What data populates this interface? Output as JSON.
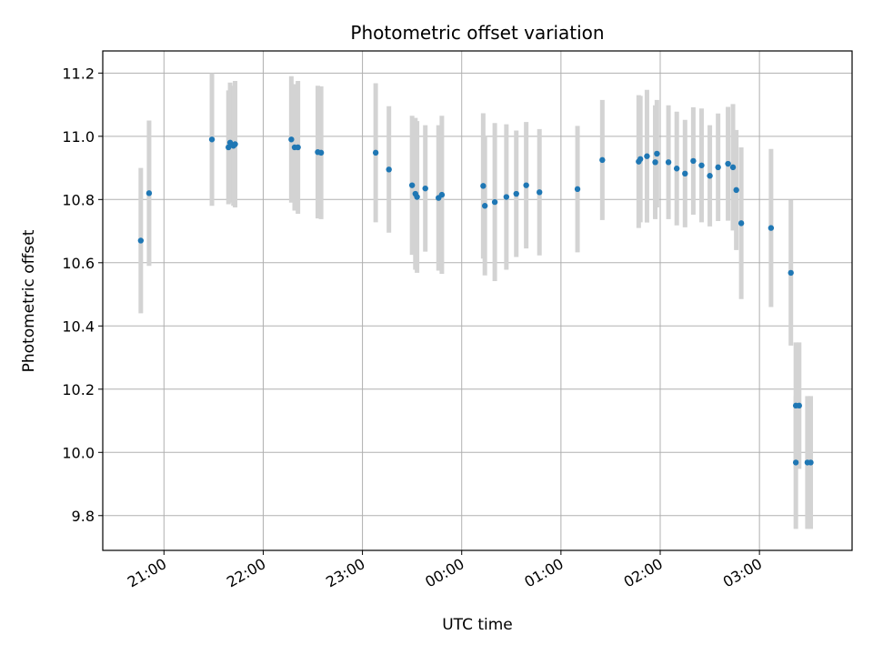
{
  "chart_data": {
    "type": "scatter",
    "title": "Photometric offset variation",
    "xlabel": "UTC time",
    "ylabel": "Photometric offset",
    "xlim": [
      "20:23",
      "03:56"
    ],
    "ylim": [
      9.69,
      11.27
    ],
    "x_ticks": [
      "21:00",
      "22:00",
      "23:00",
      "00:00",
      "01:00",
      "02:00",
      "03:00"
    ],
    "y_ticks": [
      "9.8",
      "10.0",
      "10.2",
      "10.4",
      "10.6",
      "10.8",
      "11.0",
      "11.2"
    ],
    "grid": true,
    "point_color": "#1f77b4",
    "errorbar_color": "#d3d3d3",
    "series": [
      {
        "x": [
          "20:46",
          "20:51",
          "21:29",
          "21:39",
          "21:40",
          "21:42",
          "21:43",
          "22:17",
          "22:19",
          "22:21",
          "22:33",
          "22:35",
          "23:08",
          "23:16",
          "23:30",
          "23:32",
          "23:33",
          "23:38",
          "23:46",
          "23:48",
          "00:13",
          "00:14",
          "00:20",
          "00:27",
          "00:33",
          "00:39",
          "00:47",
          "01:10",
          "01:25",
          "01:47",
          "01:48",
          "01:52",
          "01:57",
          "01:58",
          "02:05",
          "02:10",
          "02:15",
          "02:20",
          "02:25",
          "02:30",
          "02:35",
          "02:41",
          "02:44",
          "02:46",
          "02:49",
          "03:07",
          "03:19",
          "03:22",
          "03:22",
          "03:24",
          "03:29",
          "03:31"
        ],
        "y": [
          10.67,
          10.82,
          10.99,
          10.965,
          10.98,
          10.97,
          10.975,
          10.99,
          10.965,
          10.965,
          10.95,
          10.948,
          10.948,
          10.895,
          10.845,
          10.818,
          10.808,
          10.835,
          10.805,
          10.815,
          10.843,
          10.78,
          10.792,
          10.808,
          10.818,
          10.845,
          10.823,
          10.833,
          10.925,
          10.92,
          10.928,
          10.937,
          10.918,
          10.945,
          10.918,
          10.898,
          10.882,
          10.922,
          10.908,
          10.875,
          10.902,
          10.913,
          10.902,
          10.83,
          10.725,
          10.71,
          10.568,
          10.148,
          9.968,
          10.148,
          9.968,
          9.968
        ],
        "err": [
          0.23,
          0.23,
          0.21,
          0.18,
          0.19,
          0.19,
          0.2,
          0.2,
          0.2,
          0.21,
          0.21,
          0.21,
          0.22,
          0.2,
          0.22,
          0.24,
          0.24,
          0.2,
          0.23,
          0.25,
          0.23,
          0.22,
          0.25,
          0.23,
          0.2,
          0.2,
          0.2,
          0.2,
          0.19,
          0.21,
          0.2,
          0.21,
          0.18,
          0.17,
          0.18,
          0.18,
          0.17,
          0.17,
          0.18,
          0.16,
          0.17,
          0.18,
          0.2,
          0.19,
          0.24,
          0.25,
          0.23,
          0.2,
          0.21,
          0.2,
          0.21,
          0.21
        ]
      }
    ]
  }
}
